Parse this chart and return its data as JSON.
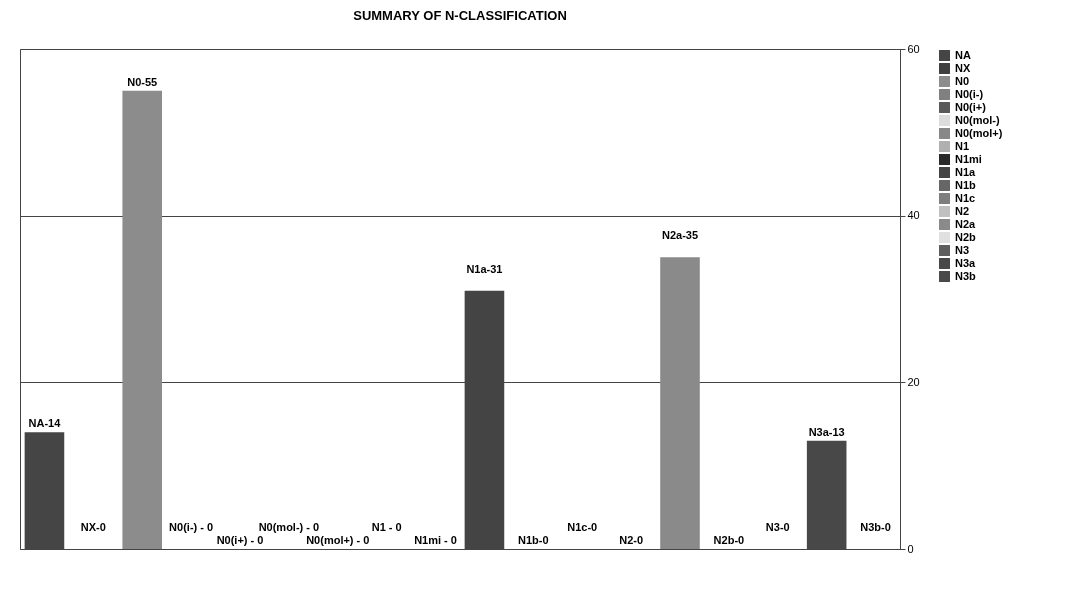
{
  "chart_data": {
    "type": "bar",
    "title": "SUMMARY OF N-CLASSIFICATION",
    "categories": [
      null,
      null,
      null,
      null,
      null,
      null,
      null,
      null,
      null,
      null,
      null,
      null,
      null,
      null,
      null,
      null,
      null,
      null
    ],
    "series": [
      {
        "name": "NA",
        "color": "#454545",
        "values": [
          14,
          null,
          null,
          null,
          null,
          null,
          null,
          null,
          null,
          null,
          null,
          null,
          null,
          null,
          null,
          null,
          null,
          null
        ],
        "value_labels": [
          "NA-14",
          null,
          null,
          null,
          null,
          null,
          null,
          null,
          null,
          null,
          null,
          null,
          null,
          null,
          null,
          null,
          null,
          null
        ]
      },
      {
        "name": "NX",
        "color": "#3f3f3f",
        "values": [
          null,
          0,
          null,
          null,
          null,
          null,
          null,
          null,
          null,
          null,
          null,
          null,
          null,
          null,
          null,
          null,
          null,
          null
        ],
        "value_labels": [
          null,
          "NX-0",
          null,
          null,
          null,
          null,
          null,
          null,
          null,
          null,
          null,
          null,
          null,
          null,
          null,
          null,
          null,
          null
        ]
      },
      {
        "name": "N0",
        "color": "#8c8c8c",
        "values": [
          null,
          null,
          55,
          null,
          null,
          null,
          null,
          null,
          null,
          null,
          null,
          null,
          null,
          null,
          null,
          null,
          null,
          null
        ],
        "value_labels": [
          null,
          null,
          "N0-55",
          null,
          null,
          null,
          null,
          null,
          null,
          null,
          null,
          null,
          null,
          null,
          null,
          null,
          null,
          null
        ]
      },
      {
        "name": "N0(i-)",
        "color": "#808080",
        "values": [
          null,
          null,
          null,
          0,
          null,
          null,
          null,
          null,
          null,
          null,
          null,
          null,
          null,
          null,
          null,
          null,
          null,
          null
        ],
        "value_labels": [
          null,
          null,
          null,
          "N0(i-) - 0",
          null,
          null,
          null,
          null,
          null,
          null,
          null,
          null,
          null,
          null,
          null,
          null,
          null,
          null
        ]
      },
      {
        "name": "N0(i+)",
        "color": "#5a5a5a",
        "values": [
          null,
          null,
          null,
          null,
          0,
          null,
          null,
          null,
          null,
          null,
          null,
          null,
          null,
          null,
          null,
          null,
          null,
          null
        ],
        "value_labels": [
          null,
          null,
          null,
          null,
          "N0(i+) - 0",
          null,
          null,
          null,
          null,
          null,
          null,
          null,
          null,
          null,
          null,
          null,
          null,
          null
        ]
      },
      {
        "name": "N0(mol-)",
        "color": "#dcdcdc",
        "values": [
          null,
          null,
          null,
          null,
          null,
          0,
          null,
          null,
          null,
          null,
          null,
          null,
          null,
          null,
          null,
          null,
          null,
          null
        ],
        "value_labels": [
          null,
          null,
          null,
          null,
          null,
          "N0(mol-) - 0",
          null,
          null,
          null,
          null,
          null,
          null,
          null,
          null,
          null,
          null,
          null,
          null
        ]
      },
      {
        "name": "N0(mol+)",
        "color": "#888888",
        "values": [
          null,
          null,
          null,
          null,
          null,
          null,
          0,
          null,
          null,
          null,
          null,
          null,
          null,
          null,
          null,
          null,
          null,
          null
        ],
        "value_labels": [
          null,
          null,
          null,
          null,
          null,
          null,
          "N0(mol+) - 0",
          null,
          null,
          null,
          null,
          null,
          null,
          null,
          null,
          null,
          null,
          null
        ]
      },
      {
        "name": "N1",
        "color": "#b0b0b0",
        "values": [
          null,
          null,
          null,
          null,
          null,
          null,
          null,
          0,
          null,
          null,
          null,
          null,
          null,
          null,
          null,
          null,
          null,
          null
        ],
        "value_labels": [
          null,
          null,
          null,
          null,
          null,
          null,
          null,
          "N1 - 0",
          null,
          null,
          null,
          null,
          null,
          null,
          null,
          null,
          null,
          null
        ]
      },
      {
        "name": "N1mi",
        "color": "#2a2a2a",
        "values": [
          null,
          null,
          null,
          null,
          null,
          null,
          null,
          null,
          0,
          null,
          null,
          null,
          null,
          null,
          null,
          null,
          null,
          null
        ],
        "value_labels": [
          null,
          null,
          null,
          null,
          null,
          null,
          null,
          null,
          "N1mi - 0",
          null,
          null,
          null,
          null,
          null,
          null,
          null,
          null,
          null
        ]
      },
      {
        "name": "N1a",
        "color": "#444444",
        "values": [
          null,
          null,
          null,
          null,
          null,
          null,
          null,
          null,
          null,
          31,
          null,
          null,
          null,
          null,
          null,
          null,
          null,
          null
        ],
        "value_labels": [
          null,
          null,
          null,
          null,
          null,
          null,
          null,
          null,
          null,
          "N1a-31",
          null,
          null,
          null,
          null,
          null,
          null,
          null,
          null
        ]
      },
      {
        "name": "N1b",
        "color": "#666666",
        "values": [
          null,
          null,
          null,
          null,
          null,
          null,
          null,
          null,
          null,
          null,
          0,
          null,
          null,
          null,
          null,
          null,
          null,
          null
        ],
        "value_labels": [
          null,
          null,
          null,
          null,
          null,
          null,
          null,
          null,
          null,
          null,
          "N1b-0",
          null,
          null,
          null,
          null,
          null,
          null,
          null
        ]
      },
      {
        "name": "N1c",
        "color": "#7e7e7e",
        "values": [
          null,
          null,
          null,
          null,
          null,
          null,
          null,
          null,
          null,
          null,
          null,
          0,
          null,
          null,
          null,
          null,
          null,
          null
        ],
        "value_labels": [
          null,
          null,
          null,
          null,
          null,
          null,
          null,
          null,
          null,
          null,
          null,
          "N1c-0",
          null,
          null,
          null,
          null,
          null,
          null
        ]
      },
      {
        "name": "N2",
        "color": "#c0c0c0",
        "values": [
          null,
          null,
          null,
          null,
          null,
          null,
          null,
          null,
          null,
          null,
          null,
          null,
          0,
          null,
          null,
          null,
          null,
          null
        ],
        "value_labels": [
          null,
          null,
          null,
          null,
          null,
          null,
          null,
          null,
          null,
          null,
          null,
          null,
          "N2-0",
          null,
          null,
          null,
          null,
          null
        ]
      },
      {
        "name": "N2a",
        "color": "#8a8a8a",
        "values": [
          null,
          null,
          null,
          null,
          null,
          null,
          null,
          null,
          null,
          null,
          null,
          null,
          null,
          35,
          null,
          null,
          null,
          null
        ],
        "value_labels": [
          null,
          null,
          null,
          null,
          null,
          null,
          null,
          null,
          null,
          null,
          null,
          null,
          null,
          "N2a-35",
          null,
          null,
          null,
          null
        ]
      },
      {
        "name": "N2b",
        "color": "#e0e0e0",
        "values": [
          null,
          null,
          null,
          null,
          null,
          null,
          null,
          null,
          null,
          null,
          null,
          null,
          null,
          null,
          0,
          null,
          null,
          null
        ],
        "value_labels": [
          null,
          null,
          null,
          null,
          null,
          null,
          null,
          null,
          null,
          null,
          null,
          null,
          null,
          null,
          "N2b-0",
          null,
          null,
          null
        ]
      },
      {
        "name": "N3",
        "color": "#5e5e5e",
        "values": [
          null,
          null,
          null,
          null,
          null,
          null,
          null,
          null,
          null,
          null,
          null,
          null,
          null,
          null,
          null,
          0,
          null,
          null
        ],
        "value_labels": [
          null,
          null,
          null,
          null,
          null,
          null,
          null,
          null,
          null,
          null,
          null,
          null,
          null,
          null,
          null,
          "N3-0",
          null,
          null
        ]
      },
      {
        "name": "N3a",
        "color": "#484848",
        "values": [
          null,
          null,
          null,
          null,
          null,
          null,
          null,
          null,
          null,
          null,
          null,
          null,
          null,
          null,
          null,
          null,
          13,
          null
        ],
        "value_labels": [
          null,
          null,
          null,
          null,
          null,
          null,
          null,
          null,
          null,
          null,
          null,
          null,
          null,
          null,
          null,
          null,
          "N3a-13",
          null
        ]
      },
      {
        "name": "N3b",
        "color": "#4a4a4a",
        "values": [
          null,
          null,
          null,
          null,
          null,
          null,
          null,
          null,
          null,
          null,
          null,
          null,
          null,
          null,
          null,
          null,
          null,
          0
        ],
        "value_labels": [
          null,
          null,
          null,
          null,
          null,
          null,
          null,
          null,
          null,
          null,
          null,
          null,
          null,
          null,
          null,
          null,
          null,
          "N3b-0"
        ]
      }
    ],
    "ylim": [
      0,
      60
    ],
    "yticks": [
      0,
      20,
      40,
      60
    ],
    "grid": "y",
    "legend": "right",
    "tick_labels": "y"
  }
}
